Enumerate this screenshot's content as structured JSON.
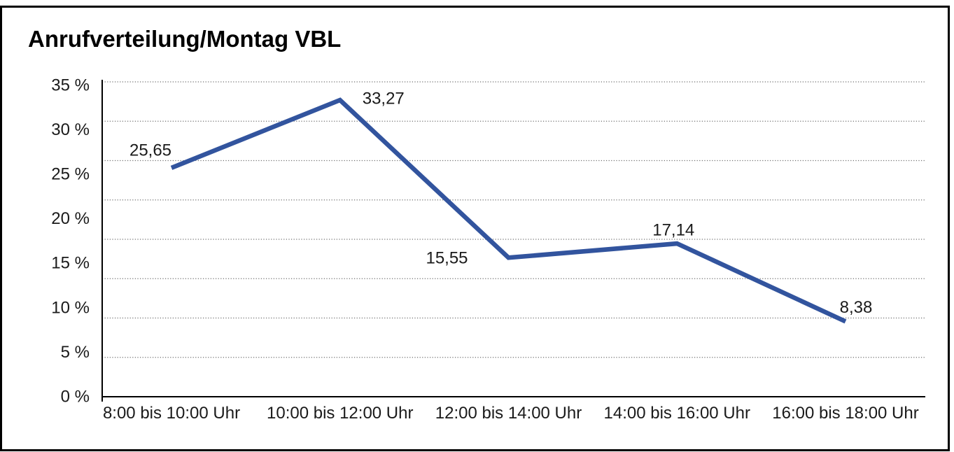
{
  "title": "Anrufverteilung/Montag VBL",
  "chart_data": {
    "type": "line",
    "title": "Anrufverteilung/Montag VBL",
    "categories": [
      "8:00 bis 10:00 Uhr",
      "10:00 bis 12:00 Uhr",
      "12:00 bis 14:00 Uhr",
      "14:00 bis 16:00 Uhr",
      "16:00 bis 18:00 Uhr"
    ],
    "values": [
      25.65,
      33.27,
      15.55,
      17.14,
      8.38
    ],
    "value_labels": [
      "25,65",
      "33,27",
      "15,55",
      "17,14",
      "8,38"
    ],
    "y_ticks": [
      "35 %",
      "30 %",
      "25 %",
      "20 %",
      "15 %",
      "10 %",
      "5 %",
      "0 %"
    ],
    "y_tick_values": [
      35,
      30,
      25,
      20,
      15,
      10,
      5,
      0
    ],
    "ylim": [
      0,
      35
    ],
    "xlabel": "",
    "ylabel": "",
    "legend": "none",
    "grid": "horizontal-dotted",
    "line_color": "#32549E",
    "axis_color": "#000000",
    "gridline_color": "#6e6e6e",
    "text_color": "#1a1a1a"
  }
}
